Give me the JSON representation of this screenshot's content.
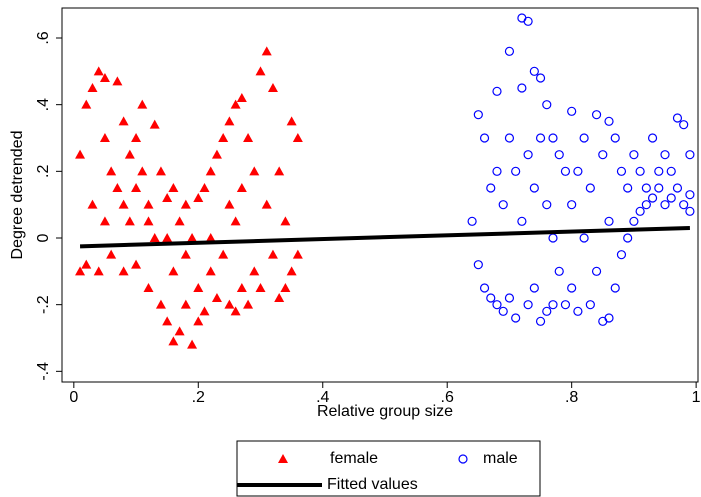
{
  "chart_data": {
    "type": "scatter",
    "x_label": "Relative group size",
    "y_label": "Degree detrended",
    "xlim": [
      -0.019,
      1.003
    ],
    "ylim": [
      -0.432,
      0.69
    ],
    "xticks": [
      0,
      {
        "value": 0.2,
        "label": ".2"
      },
      {
        "value": 0.4,
        "label": ".4"
      },
      {
        "value": 0.6,
        "label": ".6"
      },
      {
        "value": 0.8,
        "label": ".8"
      },
      1
    ],
    "yticks": [
      {
        "value": -0.4,
        "label": "-.4"
      },
      {
        "value": -0.2,
        "label": "-.2"
      },
      0,
      {
        "value": 0.2,
        "label": ".2"
      },
      {
        "value": 0.4,
        "label": ".4"
      },
      {
        "value": 0.6,
        "label": ".6"
      }
    ],
    "grid": false,
    "legend_position": "bottom",
    "series": [
      {
        "name": "female",
        "color": "#ff0000",
        "marker": "triangle",
        "x": [
          0.01,
          0.01,
          0.02,
          0.02,
          0.03,
          0.03,
          0.04,
          0.04,
          0.05,
          0.05,
          0.06,
          0.06,
          0.07,
          0.07,
          0.08,
          0.08,
          0.09,
          0.09,
          0.1,
          0.1,
          0.11,
          0.11,
          0.12,
          0.12,
          0.13,
          0.13,
          0.14,
          0.14,
          0.15,
          0.15,
          0.16,
          0.16,
          0.17,
          0.17,
          0.18,
          0.18,
          0.19,
          0.19,
          0.2,
          0.2,
          0.21,
          0.21,
          0.22,
          0.22,
          0.23,
          0.23,
          0.24,
          0.24,
          0.25,
          0.25,
          0.26,
          0.26,
          0.27,
          0.27,
          0.28,
          0.28,
          0.29,
          0.29,
          0.3,
          0.3,
          0.31,
          0.31,
          0.32,
          0.32,
          0.33,
          0.33,
          0.34,
          0.34,
          0.35,
          0.35,
          0.36,
          0.36,
          0.05,
          0.08,
          0.12,
          0.15,
          0.18,
          0.22,
          0.25,
          0.27,
          0.1,
          0.2,
          0.16,
          0.26
        ],
        "values": [
          -0.1,
          0.25,
          0.4,
          -0.08,
          0.45,
          0.1,
          0.5,
          -0.1,
          0.48,
          0.3,
          0.2,
          -0.05,
          0.47,
          0.15,
          0.35,
          -0.1,
          0.25,
          0.05,
          0.3,
          -0.08,
          0.2,
          0.4,
          0.1,
          -0.15,
          0.34,
          0.0,
          0.2,
          -0.2,
          0.12,
          -0.25,
          0.15,
          -0.31,
          0.05,
          -0.28,
          0.1,
          -0.2,
          0.0,
          -0.32,
          0.12,
          -0.15,
          0.15,
          -0.22,
          0.2,
          -0.1,
          0.25,
          -0.18,
          0.3,
          -0.05,
          0.35,
          -0.2,
          0.4,
          0.05,
          0.42,
          -0.15,
          0.3,
          -0.2,
          0.2,
          -0.1,
          0.5,
          -0.15,
          0.56,
          0.1,
          0.45,
          -0.05,
          0.2,
          -0.18,
          0.05,
          -0.15,
          0.35,
          -0.1,
          0.3,
          -0.05,
          0.05,
          0.1,
          0.05,
          0.0,
          -0.05,
          0.0,
          0.1,
          0.15,
          0.15,
          -0.25,
          -0.1,
          -0.22
        ]
      },
      {
        "name": "male",
        "color": "#0000ff",
        "marker": "circle",
        "x": [
          0.64,
          0.65,
          0.65,
          0.66,
          0.66,
          0.67,
          0.67,
          0.68,
          0.68,
          0.68,
          0.69,
          0.69,
          0.7,
          0.7,
          0.7,
          0.71,
          0.71,
          0.72,
          0.72,
          0.72,
          0.73,
          0.73,
          0.73,
          0.74,
          0.74,
          0.74,
          0.75,
          0.75,
          0.75,
          0.76,
          0.76,
          0.76,
          0.77,
          0.77,
          0.77,
          0.78,
          0.78,
          0.79,
          0.79,
          0.8,
          0.8,
          0.8,
          0.81,
          0.81,
          0.82,
          0.82,
          0.83,
          0.83,
          0.84,
          0.84,
          0.85,
          0.85,
          0.86,
          0.86,
          0.86,
          0.87,
          0.87,
          0.88,
          0.88,
          0.89,
          0.89,
          0.9,
          0.9,
          0.91,
          0.91,
          0.92,
          0.92,
          0.93,
          0.93,
          0.94,
          0.94,
          0.95,
          0.95,
          0.96,
          0.96,
          0.97,
          0.97,
          0.98,
          0.98,
          0.99,
          0.99,
          0.99
        ],
        "values": [
          0.05,
          0.37,
          -0.08,
          0.3,
          -0.15,
          0.15,
          -0.18,
          0.44,
          0.2,
          -0.2,
          0.1,
          -0.22,
          0.56,
          0.3,
          -0.18,
          0.2,
          -0.24,
          0.66,
          0.45,
          0.05,
          0.65,
          0.25,
          -0.2,
          0.5,
          0.15,
          -0.15,
          0.48,
          0.3,
          -0.25,
          0.4,
          0.1,
          -0.22,
          0.3,
          0.0,
          -0.2,
          0.25,
          -0.1,
          0.2,
          -0.2,
          0.38,
          0.1,
          -0.15,
          0.2,
          -0.22,
          0.3,
          0.0,
          0.15,
          -0.2,
          0.37,
          -0.1,
          0.25,
          -0.25,
          0.35,
          0.05,
          -0.24,
          0.3,
          -0.15,
          0.2,
          -0.05,
          0.15,
          0.0,
          0.25,
          0.05,
          0.2,
          0.08,
          0.15,
          0.1,
          0.3,
          0.12,
          0.2,
          0.15,
          0.25,
          0.1,
          0.12,
          0.2,
          0.36,
          0.15,
          0.34,
          0.1,
          0.25,
          0.13,
          0.08
        ]
      },
      {
        "name": "Fitted values",
        "color": "#000000",
        "marker": "line",
        "x": [
          0.01,
          0.99
        ],
        "values": [
          -0.025,
          0.03
        ]
      }
    ]
  }
}
